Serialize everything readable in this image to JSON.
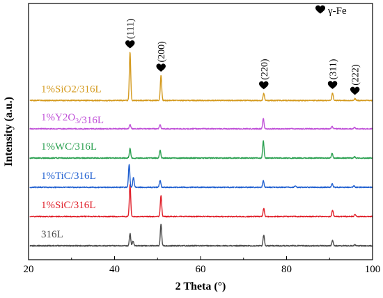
{
  "chart_data": {
    "type": "line",
    "xlabel": "2 Theta (°)",
    "ylabel": "Intensity (a.u.)",
    "xlim": [
      20,
      100
    ],
    "xticks": [
      20,
      40,
      60,
      80,
      100
    ],
    "grid": false,
    "legend": {
      "marker": "heart",
      "label": "γ-Fe",
      "position": "top-right"
    },
    "peak_labels": [
      {
        "hkl": "(111)",
        "x": 43.6
      },
      {
        "hkl": "(200)",
        "x": 50.8
      },
      {
        "hkl": "(220)",
        "x": 74.7
      },
      {
        "hkl": "(311)",
        "x": 90.7
      },
      {
        "hkl": "(222)",
        "x": 95.9
      }
    ],
    "series": [
      {
        "name": "316L",
        "color": "#4a4a4a",
        "baseline": 0.0,
        "peaks": [
          [
            43.6,
            0.42
          ],
          [
            44.3,
            0.15
          ],
          [
            50.8,
            0.75
          ],
          [
            74.7,
            0.37
          ],
          [
            90.7,
            0.18
          ],
          [
            95.9,
            0.03
          ]
        ]
      },
      {
        "name": "1%SiC/316L",
        "color": "#e0202a",
        "baseline": 1.0,
        "peaks": [
          [
            43.6,
            1.1
          ],
          [
            50.8,
            0.72
          ],
          [
            74.7,
            0.28
          ],
          [
            90.7,
            0.22
          ],
          [
            95.9,
            0.09
          ]
        ]
      },
      {
        "name": "1%TiC/316L",
        "color": "#1f5fd0",
        "baseline": 2.0,
        "peaks": [
          [
            43.4,
            0.78
          ],
          [
            44.4,
            0.35
          ],
          [
            50.6,
            0.25
          ],
          [
            74.6,
            0.23
          ],
          [
            82.0,
            0.05
          ],
          [
            90.6,
            0.12
          ],
          [
            95.7,
            0.05
          ]
        ]
      },
      {
        "name": "1%WC/316L",
        "color": "#2aa050",
        "baseline": 3.0,
        "peaks": [
          [
            43.6,
            0.33
          ],
          [
            50.6,
            0.27
          ],
          [
            74.6,
            0.58
          ],
          [
            90.6,
            0.16
          ],
          [
            95.8,
            0.05
          ]
        ]
      },
      {
        "name": "1%Y2O3/316L",
        "color": "#c050d8",
        "baseline": 4.0,
        "peaks": [
          [
            43.6,
            0.15
          ],
          [
            50.6,
            0.14
          ],
          [
            74.6,
            0.36
          ],
          [
            90.6,
            0.09
          ],
          [
            95.8,
            0.04
          ]
        ]
      },
      {
        "name": "1%SiO2/316L",
        "color": "#d49a1e",
        "baseline": 4.97,
        "peaks": [
          [
            43.6,
            1.65
          ],
          [
            50.8,
            0.85
          ],
          [
            74.7,
            0.25
          ],
          [
            90.7,
            0.26
          ],
          [
            95.9,
            0.06
          ]
        ]
      }
    ]
  }
}
